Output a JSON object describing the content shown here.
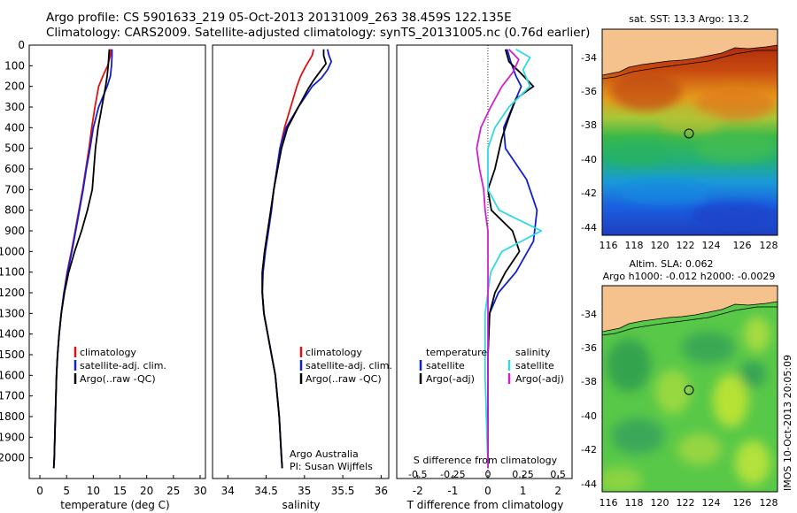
{
  "header": {
    "title_line1": "Argo profile: CS 5901633_219 05-Oct-2013 20131009_263 38.459S 122.135E",
    "title_line2": "Climatology: CARS2009. Satellite-adjusted climatology: synTS_20131005.nc (0.76d earlier)"
  },
  "colors": {
    "climatology": "#e01010",
    "satellite": "#1020d0",
    "argo": "#000000",
    "sat_salinity": "#30d8e8",
    "argo_salinity_adj": "#d020d0"
  },
  "chart_data": [
    {
      "name": "temperature-profile",
      "type": "line",
      "xlabel": "temperature (deg C)",
      "ylabel": "",
      "xlim": [
        -2,
        31
      ],
      "ylim": [
        2100,
        0
      ],
      "xticks": [
        0,
        5,
        10,
        15,
        20,
        25,
        30
      ],
      "yticks": [
        0,
        100,
        200,
        300,
        400,
        500,
        600,
        700,
        800,
        900,
        1000,
        1100,
        1200,
        1300,
        1400,
        1500,
        1600,
        1700,
        1800,
        1900,
        2000
      ],
      "legend": [
        "climatology",
        "satellite-adj. clim.",
        "Argo(..raw -QC)"
      ],
      "legend_position": "lower-right",
      "series": [
        {
          "name": "climatology",
          "color": "#e01010",
          "points": [
            [
              13.3,
              20
            ],
            [
              13.2,
              50
            ],
            [
              12.7,
              100
            ],
            [
              11.8,
              150
            ],
            [
              11.0,
              200
            ],
            [
              10.3,
              300
            ],
            [
              9.7,
              400
            ],
            [
              9.2,
              500
            ],
            [
              8.6,
              600
            ],
            [
              8.0,
              700
            ],
            [
              7.3,
              800
            ],
            [
              6.6,
              900
            ],
            [
              5.9,
              1000
            ],
            [
              5.1,
              1100
            ],
            [
              4.5,
              1200
            ],
            [
              4.0,
              1300
            ],
            [
              3.6,
              1400
            ],
            [
              3.3,
              1500
            ],
            [
              3.1,
              1600
            ],
            [
              2.9,
              1800
            ],
            [
              2.7,
              2000
            ],
            [
              2.6,
              2050
            ]
          ]
        },
        {
          "name": "satellite-adj. clim.",
          "color": "#1020d0",
          "points": [
            [
              13.5,
              20
            ],
            [
              13.5,
              50
            ],
            [
              13.4,
              100
            ],
            [
              13.2,
              150
            ],
            [
              12.6,
              200
            ],
            [
              11.0,
              300
            ],
            [
              10.0,
              400
            ],
            [
              9.4,
              500
            ],
            [
              8.7,
              600
            ],
            [
              8.1,
              700
            ],
            [
              7.4,
              800
            ],
            [
              6.7,
              900
            ],
            [
              6.0,
              1000
            ],
            [
              5.2,
              1100
            ],
            [
              4.5,
              1200
            ],
            [
              4.0,
              1300
            ],
            [
              3.6,
              1400
            ],
            [
              3.3,
              1500
            ],
            [
              3.1,
              1600
            ],
            [
              2.9,
              1800
            ],
            [
              2.7,
              2000
            ],
            [
              2.6,
              2050
            ]
          ]
        },
        {
          "name": "Argo(..raw -QC)",
          "color": "#000000",
          "points": [
            [
              13.0,
              20
            ],
            [
              12.9,
              50
            ],
            [
              12.8,
              100
            ],
            [
              12.6,
              150
            ],
            [
              12.3,
              200
            ],
            [
              11.6,
              300
            ],
            [
              10.9,
              400
            ],
            [
              10.4,
              500
            ],
            [
              10.1,
              600
            ],
            [
              9.8,
              700
            ],
            [
              8.9,
              800
            ],
            [
              7.8,
              900
            ],
            [
              6.5,
              1000
            ],
            [
              5.4,
              1100
            ],
            [
              4.6,
              1200
            ],
            [
              4.0,
              1300
            ],
            [
              3.6,
              1400
            ],
            [
              3.3,
              1500
            ],
            [
              3.1,
              1600
            ],
            [
              2.9,
              1800
            ],
            [
              2.7,
              2000
            ],
            [
              2.6,
              2050
            ]
          ]
        }
      ]
    },
    {
      "name": "salinity-profile",
      "type": "line",
      "xlabel": "salinity",
      "xlim": [
        33.8,
        36.1
      ],
      "ylim": [
        2100,
        0
      ],
      "xticks": [
        34,
        34.5,
        35,
        35.5,
        36
      ],
      "legend": [
        "climatology",
        "satellite-adj. clim.",
        "Argo(..raw -QC)"
      ],
      "legend_position": "lower-right",
      "annotation": [
        "Argo Australia",
        "PI: Susan Wijffels"
      ],
      "series": [
        {
          "name": "climatology",
          "color": "#e01010",
          "points": [
            [
              35.12,
              20
            ],
            [
              35.1,
              50
            ],
            [
              35.02,
              100
            ],
            [
              34.95,
              150
            ],
            [
              34.9,
              200
            ],
            [
              34.82,
              300
            ],
            [
              34.74,
              400
            ],
            [
              34.68,
              500
            ],
            [
              34.64,
              600
            ],
            [
              34.6,
              700
            ],
            [
              34.56,
              800
            ],
            [
              34.52,
              900
            ],
            [
              34.48,
              1000
            ],
            [
              34.45,
              1100
            ],
            [
              34.45,
              1200
            ],
            [
              34.47,
              1300
            ],
            [
              34.52,
              1400
            ],
            [
              34.57,
              1500
            ],
            [
              34.62,
              1600
            ],
            [
              34.67,
              1800
            ],
            [
              34.7,
              2000
            ],
            [
              34.71,
              2050
            ]
          ]
        },
        {
          "name": "satellite-adj. clim.",
          "color": "#1020d0",
          "points": [
            [
              35.3,
              20
            ],
            [
              35.32,
              50
            ],
            [
              35.35,
              80
            ],
            [
              35.3,
              120
            ],
            [
              35.22,
              160
            ],
            [
              35.1,
              200
            ],
            [
              34.92,
              300
            ],
            [
              34.76,
              400
            ],
            [
              34.68,
              500
            ],
            [
              34.64,
              600
            ],
            [
              34.6,
              700
            ],
            [
              34.57,
              800
            ],
            [
              34.53,
              900
            ],
            [
              34.49,
              1000
            ],
            [
              34.46,
              1100
            ],
            [
              34.45,
              1200
            ],
            [
              34.47,
              1300
            ],
            [
              34.52,
              1400
            ],
            [
              34.57,
              1500
            ],
            [
              34.62,
              1600
            ],
            [
              34.67,
              1800
            ],
            [
              34.7,
              2000
            ],
            [
              34.71,
              2050
            ]
          ]
        },
        {
          "name": "Argo(..raw -QC)",
          "color": "#000000",
          "points": [
            [
              35.25,
              20
            ],
            [
              35.25,
              50
            ],
            [
              35.28,
              90
            ],
            [
              35.2,
              130
            ],
            [
              35.12,
              170
            ],
            [
              35.05,
              210
            ],
            [
              34.92,
              300
            ],
            [
              34.78,
              400
            ],
            [
              34.7,
              500
            ],
            [
              34.65,
              600
            ],
            [
              34.6,
              700
            ],
            [
              34.56,
              800
            ],
            [
              34.52,
              900
            ],
            [
              34.48,
              1000
            ],
            [
              34.45,
              1100
            ],
            [
              34.45,
              1200
            ],
            [
              34.47,
              1300
            ],
            [
              34.52,
              1400
            ],
            [
              34.57,
              1500
            ],
            [
              34.62,
              1600
            ],
            [
              34.67,
              1800
            ],
            [
              34.7,
              2000
            ],
            [
              34.71,
              2050
            ]
          ]
        }
      ]
    },
    {
      "name": "difference-profile",
      "type": "line",
      "xlabel": "T difference from climatology",
      "xlabel_top": "S difference from climatology",
      "xlim": [
        -2.6,
        2.4
      ],
      "ylim": [
        2100,
        0
      ],
      "xticks_T": [
        -2,
        -1,
        0,
        1,
        2
      ],
      "xticks_S_labels": [
        "-0.5",
        "-0.25",
        "0",
        "0.25",
        "0.5"
      ],
      "legend_temperature": {
        "heading": "temperature",
        "items": [
          "satellite",
          "Argo(-adj)"
        ]
      },
      "legend_salinity": {
        "heading": "salinity",
        "items": [
          "satellite",
          "Argo(-adj)"
        ]
      },
      "series": [
        {
          "name": "temperature satellite",
          "color": "#1020d0",
          "points": [
            [
              0.55,
              20
            ],
            [
              0.65,
              80
            ],
            [
              0.8,
              150
            ],
            [
              0.95,
              200
            ],
            [
              0.7,
              300
            ],
            [
              0.45,
              400
            ],
            [
              0.5,
              500
            ],
            [
              1.1,
              650
            ],
            [
              1.4,
              800
            ],
            [
              1.3,
              950
            ],
            [
              0.8,
              1100
            ],
            [
              0.3,
              1200
            ],
            [
              0.05,
              1300
            ],
            [
              0,
              1500
            ],
            [
              0,
              1800
            ],
            [
              0,
              2050
            ]
          ]
        },
        {
          "name": "temperature Argo(-adj)",
          "color": "#000000",
          "points": [
            [
              0.5,
              20
            ],
            [
              0.6,
              80
            ],
            [
              0.9,
              130
            ],
            [
              1.3,
              200
            ],
            [
              0.8,
              260
            ],
            [
              0.6,
              350
            ],
            [
              0.4,
              450
            ],
            [
              0.2,
              600
            ],
            [
              0,
              700
            ],
            [
              0.1,
              800
            ],
            [
              0.7,
              900
            ],
            [
              0.9,
              1000
            ],
            [
              0.5,
              1100
            ],
            [
              0.2,
              1200
            ],
            [
              0.05,
              1300
            ],
            [
              0,
              1500
            ],
            [
              0,
              1800
            ],
            [
              0,
              2050
            ]
          ]
        },
        {
          "name": "salinity satellite",
          "color": "#30d8e8",
          "points": [
            [
              0.2,
              20
            ],
            [
              0.3,
              60
            ],
            [
              0.25,
              120
            ],
            [
              0.3,
              200
            ],
            [
              0.15,
              300
            ],
            [
              0.05,
              400
            ],
            [
              0,
              500
            ],
            [
              0,
              700
            ],
            [
              0.08,
              800
            ],
            [
              0.38,
              900
            ],
            [
              0.1,
              1000
            ],
            [
              0.02,
              1100
            ],
            [
              -0.02,
              1300
            ],
            [
              -0.02,
              1600
            ],
            [
              0,
              2050
            ]
          ]
        },
        {
          "name": "salinity Argo(-adj)",
          "color": "#d020d0",
          "points": [
            [
              0.15,
              20
            ],
            [
              0.22,
              70
            ],
            [
              0.18,
              130
            ],
            [
              0.1,
              200
            ],
            [
              0.02,
              300
            ],
            [
              -0.05,
              400
            ],
            [
              -0.08,
              500
            ],
            [
              -0.06,
              600
            ],
            [
              -0.03,
              700
            ],
            [
              -0.02,
              800
            ],
            [
              0,
              900
            ],
            [
              0,
              1000
            ],
            [
              0,
              1200
            ],
            [
              0,
              2050
            ]
          ]
        }
      ]
    }
  ],
  "maps": {
    "sst": {
      "title": "sat. SST: 13.3 Argo: 13.2",
      "lat_ticks": [
        "-34",
        "-36",
        "-38",
        "-40",
        "-42",
        "-44"
      ],
      "lon_ticks": [
        "116",
        "118",
        "120",
        "122",
        "124",
        "126",
        "128"
      ]
    },
    "sla": {
      "title_line1": "Altim. SLA: 0.062",
      "title_line2": "Argo h1000: -0.012 h2000: -0.0029",
      "lat_ticks": [
        "-34",
        "-36",
        "-38",
        "-40",
        "-42",
        "-44"
      ],
      "lon_ticks": [
        "116",
        "118",
        "120",
        "122",
        "124",
        "126",
        "128"
      ]
    },
    "side_caption": "IMOS 10-Oct-2013 20:05:09"
  }
}
